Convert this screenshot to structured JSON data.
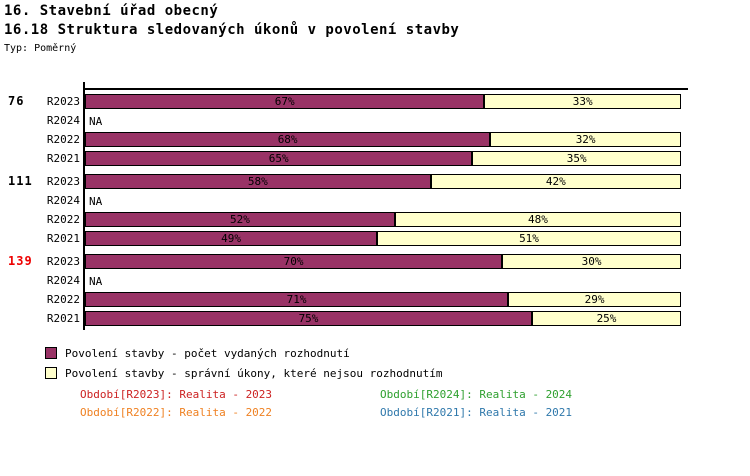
{
  "header": {
    "title": "16. Stavební úřad obecný",
    "subtitle": "16.18 Struktura sledovaných úkonů v povolení stavby",
    "type_label": "Typ: Poměrný"
  },
  "chart_data": {
    "type": "bar",
    "orientation": "horizontal",
    "stacked": true,
    "unit": "%",
    "na_label": "NA",
    "xlim": [
      0,
      100
    ],
    "grid": false,
    "series_names": [
      "Povolení stavby - počet vydaných rozhodnutí",
      "Povolení stavby - správní úkony, které nejsou rozhodnutím"
    ],
    "colors": {
      "decisions": "#993366",
      "admin_acts": "#ffffcc",
      "bar_border": "#000000"
    },
    "groups": [
      {
        "label": "76",
        "label_color": "#000000",
        "rows": [
          {
            "period": "R2023",
            "decisions_pct": 67,
            "admin_pct": 33,
            "na": false
          },
          {
            "period": "R2024",
            "decisions_pct": null,
            "admin_pct": null,
            "na": true
          },
          {
            "period": "R2022",
            "decisions_pct": 68,
            "admin_pct": 32,
            "na": false
          },
          {
            "period": "R2021",
            "decisions_pct": 65,
            "admin_pct": 35,
            "na": false
          }
        ]
      },
      {
        "label": "111",
        "label_color": "#000000",
        "rows": [
          {
            "period": "R2023",
            "decisions_pct": 58,
            "admin_pct": 42,
            "na": false
          },
          {
            "period": "R2024",
            "decisions_pct": null,
            "admin_pct": null,
            "na": true
          },
          {
            "period": "R2022",
            "decisions_pct": 52,
            "admin_pct": 48,
            "na": false
          },
          {
            "period": "R2021",
            "decisions_pct": 49,
            "admin_pct": 51,
            "na": false
          }
        ]
      },
      {
        "label": "139",
        "label_color": "#ee0000",
        "rows": [
          {
            "period": "R2023",
            "decisions_pct": 70,
            "admin_pct": 30,
            "na": false
          },
          {
            "period": "R2024",
            "decisions_pct": null,
            "admin_pct": null,
            "na": true
          },
          {
            "period": "R2022",
            "decisions_pct": 71,
            "admin_pct": 29,
            "na": false
          },
          {
            "period": "R2021",
            "decisions_pct": 75,
            "admin_pct": 25,
            "na": false
          }
        ]
      }
    ]
  },
  "legend": [
    {
      "label": "Povolení stavby - počet vydaných rozhodnutí",
      "color": "#993366"
    },
    {
      "label": "Povolení stavby - správní úkony, které nejsou rozhodnutím",
      "color": "#ffffcc"
    }
  ],
  "footer": [
    {
      "text": "Období[R2023]: Realita - 2023",
      "color": "#cc2222"
    },
    {
      "text": "Období[R2024]: Realita - 2024",
      "color": "#2fa02f"
    },
    {
      "text": "Období[R2022]: Realita - 2022",
      "color": "#ef8122"
    },
    {
      "text": "Období[R2021]: Realita - 2021",
      "color": "#2f78ab"
    }
  ]
}
